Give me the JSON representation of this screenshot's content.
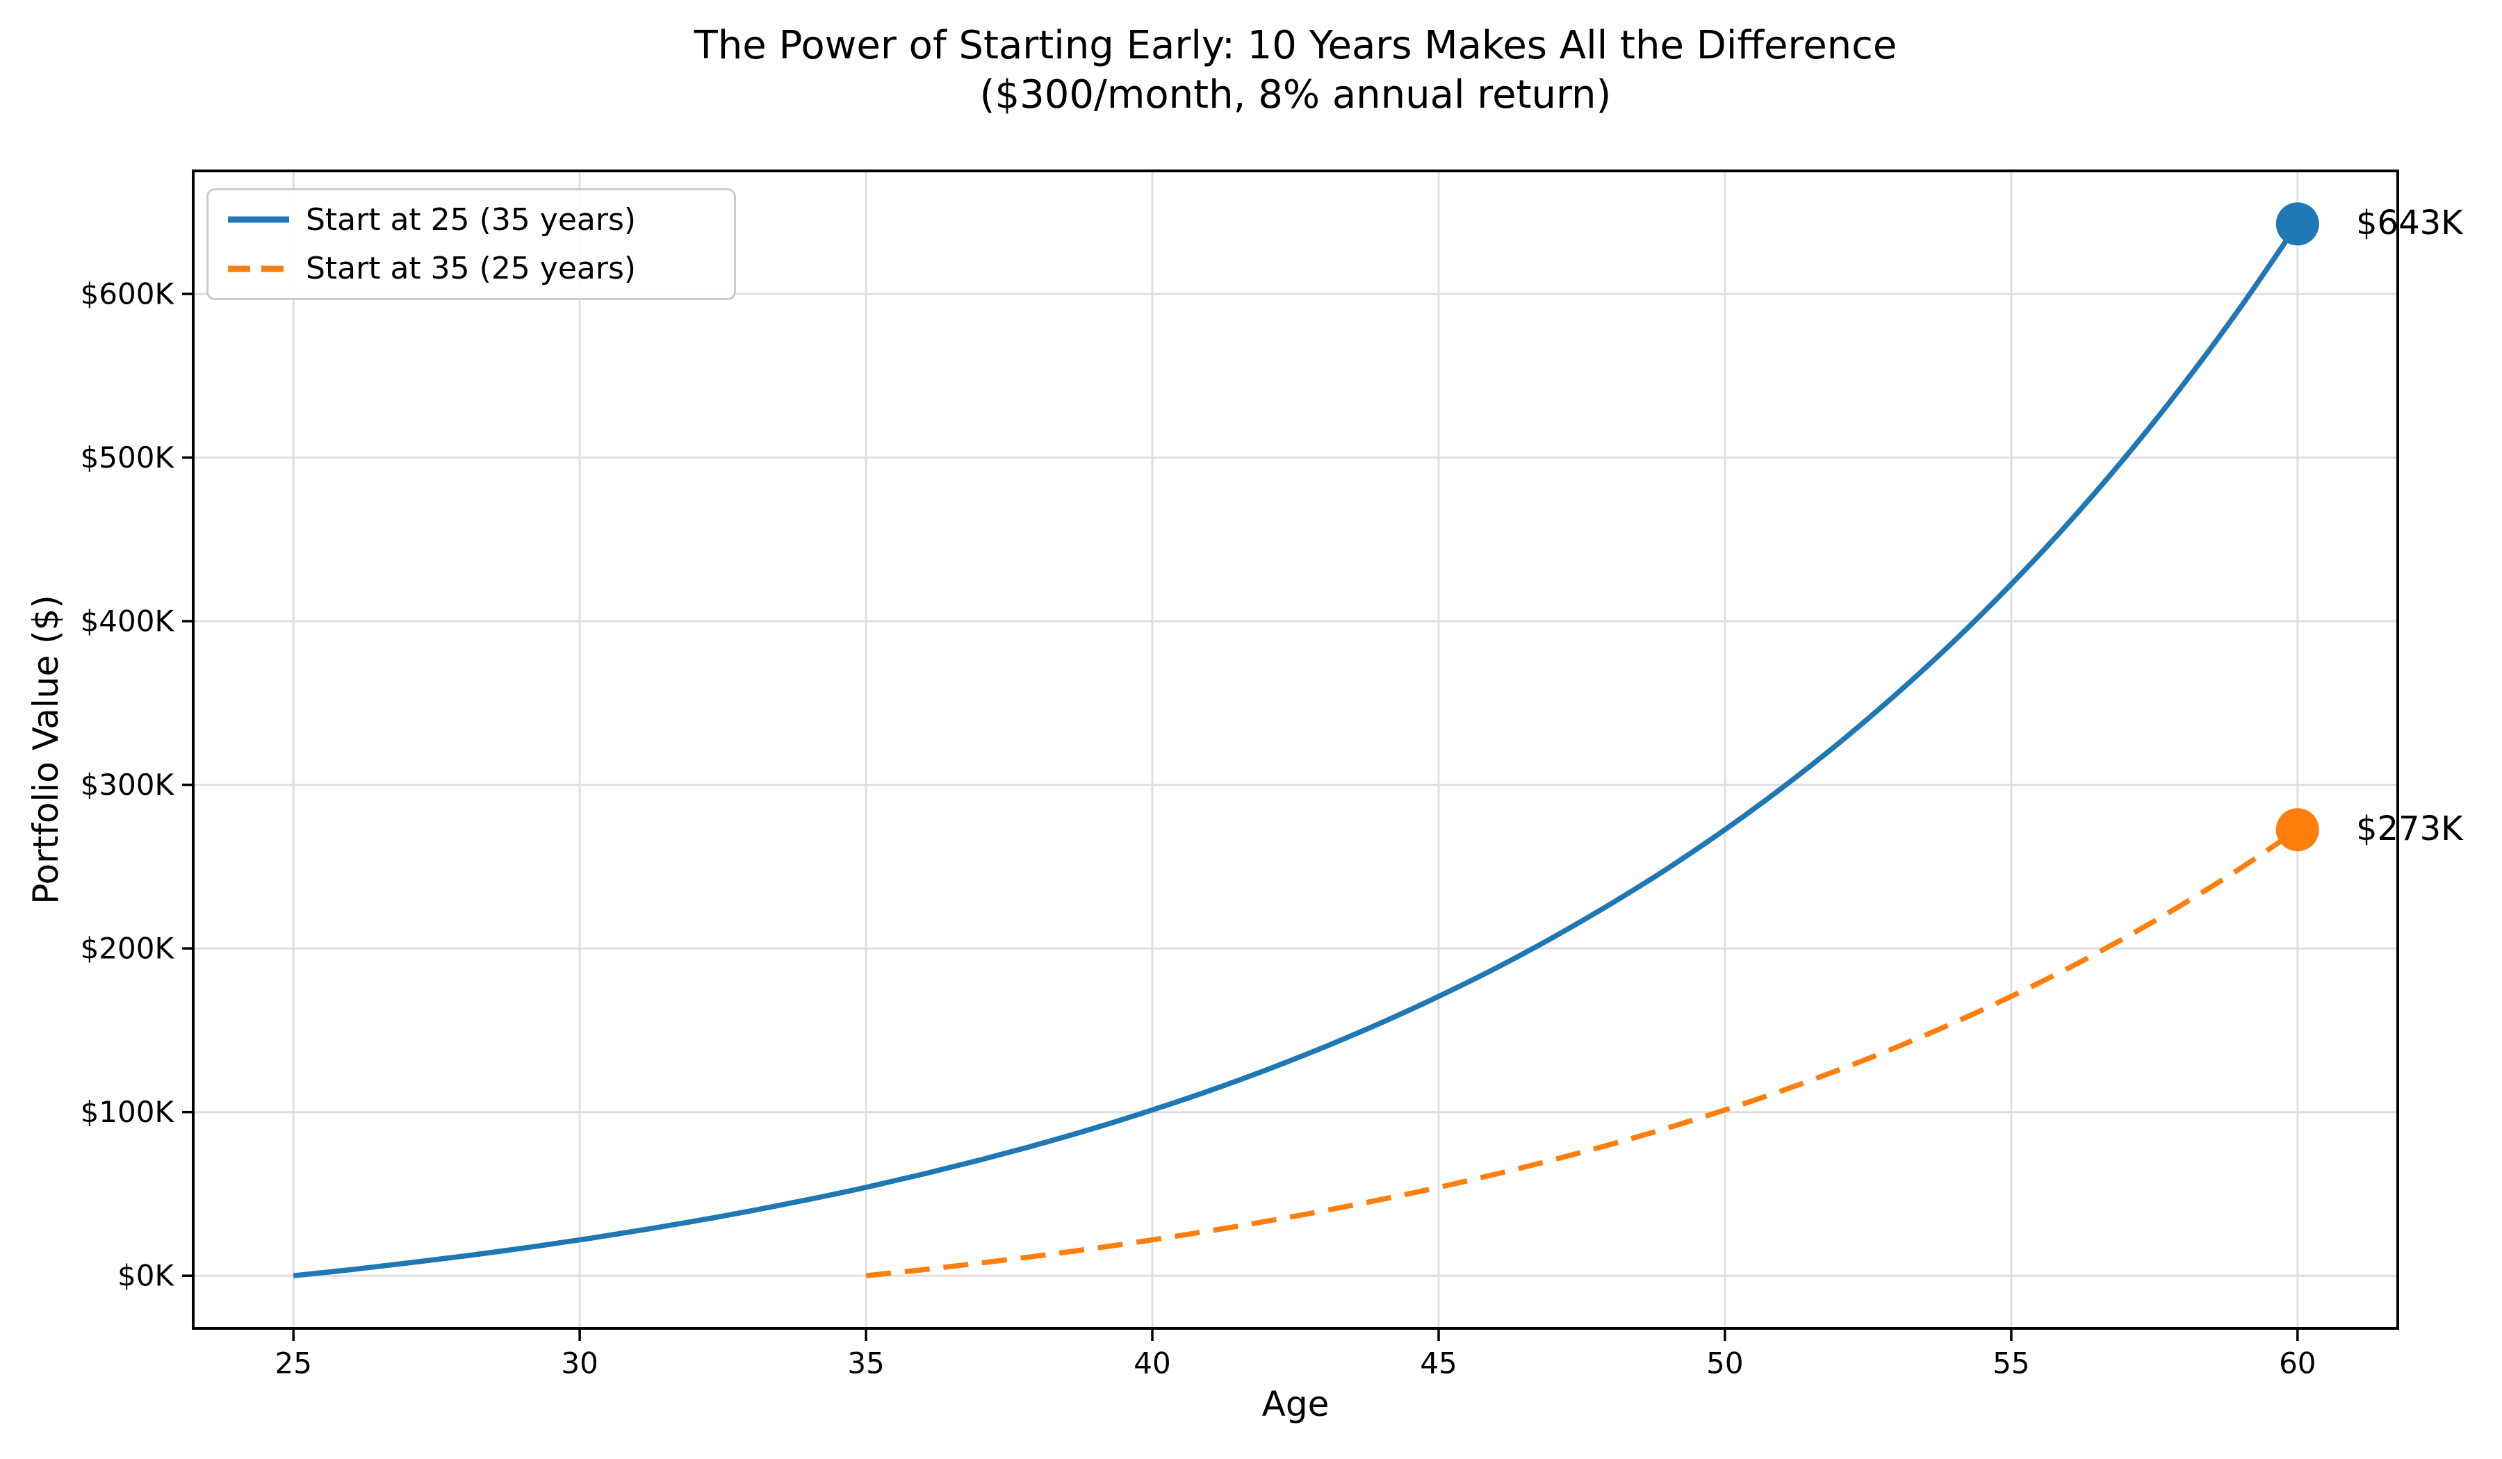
{
  "title": {
    "line1": "The Power of Starting Early: 10 Years Makes All the Difference",
    "line2": "($300/month, 8% annual return)"
  },
  "chart_data": {
    "type": "line",
    "title": "The Power of Starting Early: 10 Years Makes All the Difference ($300/month, 8% annual return)",
    "xlabel": "Age",
    "ylabel": "Portfolio Value ($)",
    "xlim": [
      23.25,
      61.75
    ],
    "ylim_thousands": [
      -32.2,
      675.2
    ],
    "x_ticks": [
      25,
      30,
      35,
      40,
      45,
      50,
      55,
      60
    ],
    "y_ticks": [
      {
        "value": 0,
        "label": "$0K"
      },
      {
        "value": 100,
        "label": "$100K"
      },
      {
        "value": 200,
        "label": "$200K"
      },
      {
        "value": 300,
        "label": "$300K"
      },
      {
        "value": 400,
        "label": "$400K"
      },
      {
        "value": 500,
        "label": "$500K"
      },
      {
        "value": 600,
        "label": "$600K"
      }
    ],
    "grid": true,
    "legend_position": "upper left",
    "series": [
      {
        "name": "Start at 25 (35 years)",
        "color": "#1f77b4",
        "style": "solid",
        "ages": [
          25,
          26,
          27,
          28,
          29,
          30,
          31,
          32,
          33,
          34,
          35,
          36,
          37,
          38,
          39,
          40,
          41,
          42,
          43,
          44,
          45,
          46,
          47,
          48,
          49,
          50,
          51,
          52,
          53,
          54,
          55,
          56,
          57,
          58,
          59,
          60
        ],
        "values_thousands": [
          0,
          3.7,
          7.8,
          12.1,
          16.8,
          21.9,
          27.4,
          33.3,
          39.7,
          46.6,
          54.0,
          62.1,
          70.8,
          80.2,
          90.3,
          101.3,
          113.1,
          125.9,
          139.7,
          154.6,
          170.7,
          188.0,
          206.8,
          227.1,
          248.9,
          272.6,
          298.2,
          325.8,
          355.7,
          387.8,
          422.6,
          460.1,
          500.6,
          544.4,
          591.7,
          642.8
        ],
        "end_marker": {
          "age": 60,
          "value_thousands": 642.8
        },
        "end_label": "$643K"
      },
      {
        "name": "Start at 35 (25 years)",
        "color": "#ff7f0e",
        "style": "dashed",
        "ages": [
          35,
          36,
          37,
          38,
          39,
          40,
          41,
          42,
          43,
          44,
          45,
          46,
          47,
          48,
          49,
          50,
          51,
          52,
          53,
          54,
          55,
          56,
          57,
          58,
          59,
          60
        ],
        "values_thousands": [
          0,
          3.7,
          7.8,
          12.1,
          16.8,
          21.9,
          27.4,
          33.3,
          39.7,
          46.6,
          54.0,
          62.1,
          70.8,
          80.2,
          90.3,
          101.3,
          113.1,
          125.9,
          139.7,
          154.6,
          170.7,
          188.0,
          206.8,
          227.1,
          248.9,
          272.6
        ],
        "end_marker": {
          "age": 60,
          "value_thousands": 272.6
        },
        "end_label": "$273K"
      }
    ]
  },
  "colors": {
    "series_blue": "#1f77b4",
    "series_orange": "#ff7f0e",
    "grid": "#e0e0e0",
    "spine": "#000000",
    "legend_border": "#cccccc",
    "text": "#000000"
  }
}
